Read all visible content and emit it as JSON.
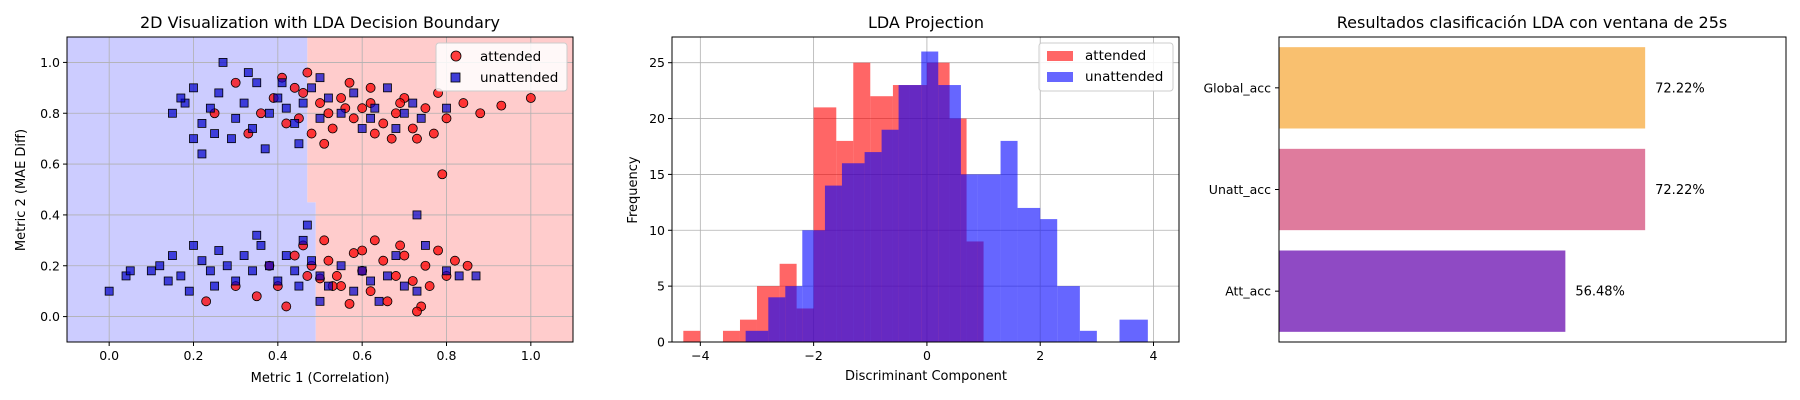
{
  "chart_data": [
    {
      "type": "scatter",
      "title": "2D Visualization with LDA Decision Boundary",
      "xlabel": "Metric 1 (Correlation)",
      "ylabel": "Metric 2 (MAE Diff)",
      "xlim": [
        -0.1,
        1.1
      ],
      "ylim": [
        -0.1,
        1.1
      ],
      "xticks": [
        0.0,
        0.2,
        0.4,
        0.6,
        0.8,
        1.0
      ],
      "yticks": [
        0.0,
        0.2,
        0.4,
        0.6,
        0.8,
        1.0
      ],
      "grid": true,
      "legend_position": "top-right",
      "decision_boundary": {
        "upper_x": 0.47,
        "lower_x": 0.49
      },
      "region_colors": {
        "unattended": "#ccccff",
        "attended": "#ffcccc"
      },
      "series": [
        {
          "name": "attended",
          "marker": "circle",
          "color": "#ff0000",
          "edge": "#000000",
          "points": [
            [
              0.46,
              0.88
            ],
            [
              0.5,
              0.84
            ],
            [
              0.52,
              0.8
            ],
            [
              0.55,
              0.86
            ],
            [
              0.58,
              0.78
            ],
            [
              0.6,
              0.82
            ],
            [
              0.62,
              0.9
            ],
            [
              0.65,
              0.76
            ],
            [
              0.68,
              0.8
            ],
            [
              0.7,
              0.86
            ],
            [
              0.72,
              0.74
            ],
            [
              0.75,
              0.82
            ],
            [
              0.78,
              0.88
            ],
            [
              0.8,
              0.78
            ],
            [
              0.84,
              0.84
            ],
            [
              0.88,
              0.8
            ],
            [
              0.93,
              0.83
            ],
            [
              1.0,
              0.86
            ],
            [
              0.44,
              0.9
            ],
            [
              0.42,
              0.76
            ],
            [
              0.48,
              0.72
            ],
            [
              0.53,
              0.74
            ],
            [
              0.57,
              0.92
            ],
            [
              0.63,
              0.72
            ],
            [
              0.67,
              0.7
            ],
            [
              0.73,
              0.7
            ],
            [
              0.77,
              0.72
            ],
            [
              0.36,
              0.8
            ],
            [
              0.33,
              0.72
            ],
            [
              0.39,
              0.86
            ],
            [
              0.41,
              0.94
            ],
            [
              0.62,
              0.84
            ],
            [
              0.56,
              0.82
            ],
            [
              0.69,
              0.84
            ],
            [
              0.79,
              0.56
            ],
            [
              0.51,
              0.68
            ],
            [
              0.47,
              0.96
            ],
            [
              0.45,
              0.78
            ],
            [
              0.25,
              0.8
            ],
            [
              0.3,
              0.92
            ],
            [
              0.48,
              0.2
            ],
            [
              0.5,
              0.15
            ],
            [
              0.52,
              0.22
            ],
            [
              0.55,
              0.12
            ],
            [
              0.58,
              0.25
            ],
            [
              0.6,
              0.18
            ],
            [
              0.62,
              0.1
            ],
            [
              0.65,
              0.22
            ],
            [
              0.68,
              0.16
            ],
            [
              0.7,
              0.24
            ],
            [
              0.72,
              0.14
            ],
            [
              0.74,
              0.04
            ],
            [
              0.75,
              0.2
            ],
            [
              0.78,
              0.26
            ],
            [
              0.8,
              0.16
            ],
            [
              0.82,
              0.22
            ],
            [
              0.85,
              0.2
            ],
            [
              0.63,
              0.3
            ],
            [
              0.57,
              0.05
            ],
            [
              0.47,
              0.16
            ],
            [
              0.44,
              0.24
            ],
            [
              0.4,
              0.12
            ],
            [
              0.38,
              0.2
            ],
            [
              0.35,
              0.08
            ],
            [
              0.3,
              0.12
            ],
            [
              0.23,
              0.06
            ],
            [
              0.53,
              0.12
            ],
            [
              0.66,
              0.06
            ],
            [
              0.69,
              0.28
            ],
            [
              0.73,
              0.02
            ],
            [
              0.6,
              0.26
            ],
            [
              0.46,
              0.28
            ],
            [
              0.42,
              0.04
            ],
            [
              0.51,
              0.3
            ],
            [
              0.54,
              0.16
            ],
            [
              0.76,
              0.12
            ]
          ]
        },
        {
          "name": "unattended",
          "marker": "square",
          "color": "#0000cc",
          "edge": "#000000",
          "points": [
            [
              0.15,
              0.8
            ],
            [
              0.18,
              0.84
            ],
            [
              0.2,
              0.9
            ],
            [
              0.22,
              0.76
            ],
            [
              0.24,
              0.82
            ],
            [
              0.26,
              0.88
            ],
            [
              0.27,
              1.0
            ],
            [
              0.3,
              0.78
            ],
            [
              0.32,
              0.84
            ],
            [
              0.34,
              0.74
            ],
            [
              0.35,
              0.92
            ],
            [
              0.38,
              0.8
            ],
            [
              0.4,
              0.86
            ],
            [
              0.42,
              0.82
            ],
            [
              0.44,
              0.76
            ],
            [
              0.46,
              0.84
            ],
            [
              0.48,
              0.9
            ],
            [
              0.5,
              0.78
            ],
            [
              0.52,
              0.86
            ],
            [
              0.55,
              0.8
            ],
            [
              0.58,
              0.88
            ],
            [
              0.6,
              0.74
            ],
            [
              0.63,
              0.82
            ],
            [
              0.66,
              0.9
            ],
            [
              0.7,
              0.8
            ],
            [
              0.74,
              0.78
            ],
            [
              0.22,
              0.64
            ],
            [
              0.2,
              0.7
            ],
            [
              0.25,
              0.72
            ],
            [
              0.33,
              0.96
            ],
            [
              0.37,
              0.66
            ],
            [
              0.45,
              0.68
            ],
            [
              0.5,
              0.94
            ],
            [
              0.62,
              0.78
            ],
            [
              0.68,
              0.74
            ],
            [
              0.72,
              0.84
            ],
            [
              0.8,
              0.82
            ],
            [
              0.17,
              0.86
            ],
            [
              0.29,
              0.7
            ],
            [
              0.41,
              0.92
            ],
            [
              0.0,
              0.1
            ],
            [
              0.04,
              0.16
            ],
            [
              0.05,
              0.18
            ],
            [
              0.1,
              0.18
            ],
            [
              0.12,
              0.2
            ],
            [
              0.15,
              0.24
            ],
            [
              0.17,
              0.16
            ],
            [
              0.2,
              0.28
            ],
            [
              0.22,
              0.22
            ],
            [
              0.24,
              0.18
            ],
            [
              0.26,
              0.26
            ],
            [
              0.28,
              0.2
            ],
            [
              0.3,
              0.14
            ],
            [
              0.32,
              0.24
            ],
            [
              0.34,
              0.18
            ],
            [
              0.36,
              0.28
            ],
            [
              0.38,
              0.2
            ],
            [
              0.4,
              0.14
            ],
            [
              0.42,
              0.24
            ],
            [
              0.44,
              0.18
            ],
            [
              0.46,
              0.3
            ],
            [
              0.48,
              0.22
            ],
            [
              0.5,
              0.16
            ],
            [
              0.52,
              0.12
            ],
            [
              0.55,
              0.2
            ],
            [
              0.58,
              0.1
            ],
            [
              0.6,
              0.18
            ],
            [
              0.62,
              0.14
            ],
            [
              0.64,
              0.06
            ],
            [
              0.66,
              0.16
            ],
            [
              0.68,
              0.24
            ],
            [
              0.7,
              0.12
            ],
            [
              0.73,
              0.1
            ],
            [
              0.75,
              0.28
            ],
            [
              0.8,
              0.18
            ],
            [
              0.83,
              0.16
            ],
            [
              0.87,
              0.16
            ],
            [
              0.73,
              0.4
            ],
            [
              0.5,
              0.06
            ],
            [
              0.47,
              0.36
            ],
            [
              0.25,
              0.12
            ],
            [
              0.19,
              0.1
            ],
            [
              0.14,
              0.14
            ],
            [
              0.35,
              0.32
            ],
            [
              0.45,
              0.12
            ]
          ]
        }
      ]
    },
    {
      "type": "histogram",
      "title": "LDA Projection",
      "xlabel": "Discriminant Component",
      "ylabel": "Frequency",
      "xlim": [
        -4.5,
        4.45
      ],
      "ylim": [
        0,
        27.3
      ],
      "xticks": [
        -4,
        -2,
        0,
        2,
        4
      ],
      "yticks": [
        0,
        5,
        10,
        15,
        20,
        25
      ],
      "grid": true,
      "legend_position": "top-right",
      "series": [
        {
          "name": "attended",
          "color": "#ff0000",
          "alpha": 0.6,
          "edges": [
            -4.3,
            -4.0,
            -3.6,
            -3.3,
            -3.0,
            -2.6,
            -2.3,
            -2.0,
            -1.6,
            -1.3,
            -1.0,
            -0.6,
            -0.3,
            0.0,
            0.4,
            0.7,
            1.0
          ],
          "counts": [
            1,
            0,
            1,
            2,
            5,
            7,
            3,
            21,
            18,
            25,
            22,
            23,
            23,
            25,
            20,
            9
          ]
        },
        {
          "name": "unattended",
          "color": "#0000ff",
          "alpha": 0.6,
          "edges": [
            -3.2,
            -2.8,
            -2.5,
            -2.2,
            -1.8,
            -1.5,
            -1.1,
            -0.8,
            -0.5,
            -0.1,
            0.2,
            0.6,
            0.9,
            1.3,
            1.6,
            2.0,
            2.3,
            2.7,
            3.0,
            3.4,
            3.9
          ],
          "counts": [
            1,
            4,
            5,
            10,
            14,
            16,
            17,
            19,
            23,
            26,
            23,
            15,
            15,
            18,
            12,
            11,
            5,
            1,
            0,
            2
          ]
        }
      ]
    },
    {
      "type": "bar",
      "orientation": "horizontal",
      "title": "Resultados clasificación LDA con ventana de 25s",
      "categories": [
        "Global_acc",
        "Unatt_acc",
        "Att_acc"
      ],
      "values": [
        72.22,
        72.22,
        56.48
      ],
      "value_labels": [
        "72.22%",
        "72.22%",
        "56.48%"
      ],
      "colors": [
        "#f9c06f",
        "#df7b9d",
        "#8f4ac4"
      ],
      "xlim": [
        0,
        100
      ],
      "grid": false
    }
  ]
}
